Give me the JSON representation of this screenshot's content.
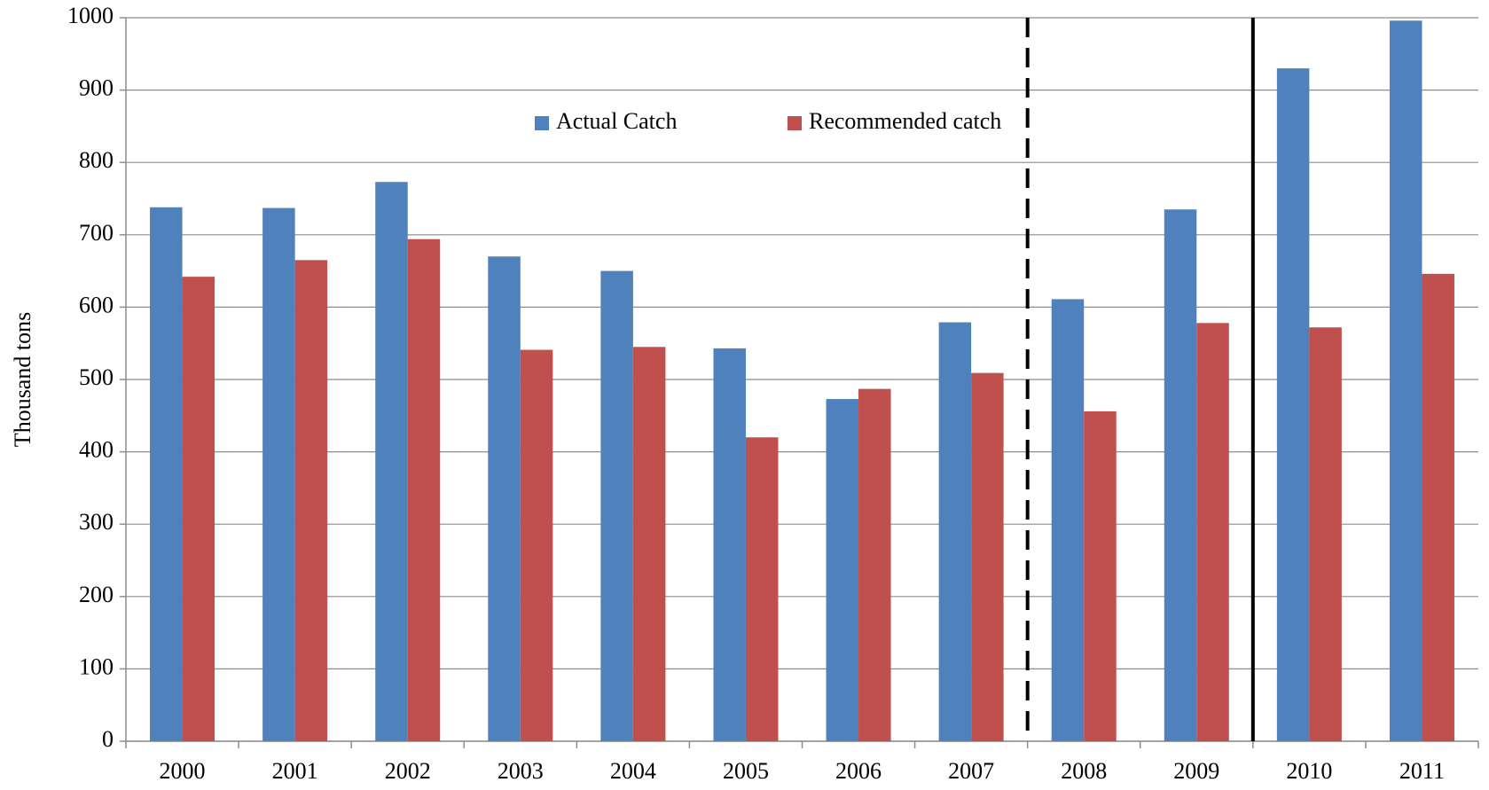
{
  "chart_data": {
    "type": "bar",
    "y_label": "Thousand tons",
    "categories": [
      "2000",
      "2001",
      "2002",
      "2003",
      "2004",
      "2005",
      "2006",
      "2007",
      "2008",
      "2009",
      "2010",
      "2011"
    ],
    "series": [
      {
        "name": "Actual Catch",
        "color": "#4f81bd",
        "values": [
          738,
          737,
          773,
          670,
          650,
          543,
          473,
          579,
          611,
          735,
          930,
          996
        ]
      },
      {
        "name": "Recommended catch",
        "color": "#c0504d",
        "values": [
          642,
          665,
          694,
          541,
          545,
          420,
          487,
          509,
          456,
          578,
          572,
          646
        ]
      }
    ],
    "ylim": [
      0,
      1000
    ],
    "yticks": [
      0,
      100,
      200,
      300,
      400,
      500,
      600,
      700,
      800,
      900,
      1000
    ],
    "grid": true,
    "legend": "top"
  }
}
